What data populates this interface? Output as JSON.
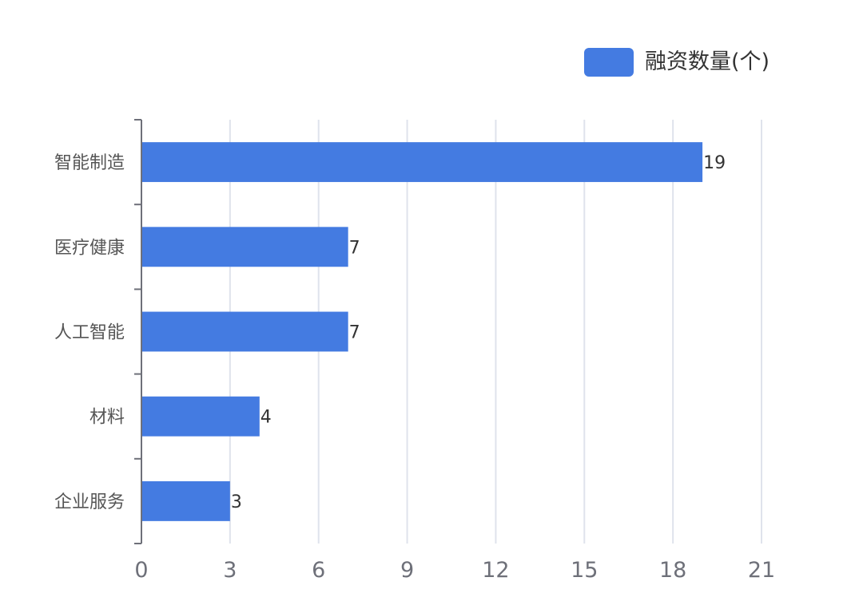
{
  "chart_data": {
    "type": "bar",
    "orientation": "horizontal",
    "categories": [
      "智能制造",
      "医疗健康",
      "人工智能",
      "材料",
      "企业服务"
    ],
    "series": [
      {
        "name": "融资数量(个)",
        "values": [
          19,
          7,
          7,
          4,
          3
        ],
        "color": "#447be1"
      }
    ],
    "x_ticks": [
      "0",
      "3",
      "6",
      "9",
      "12",
      "15",
      "18",
      "21"
    ],
    "xlim": [
      0,
      21
    ],
    "grid": true,
    "legend_position": "top-right",
    "data_labels": true
  },
  "legend": {
    "label": "融资数量(个)",
    "color": "#447be1"
  }
}
